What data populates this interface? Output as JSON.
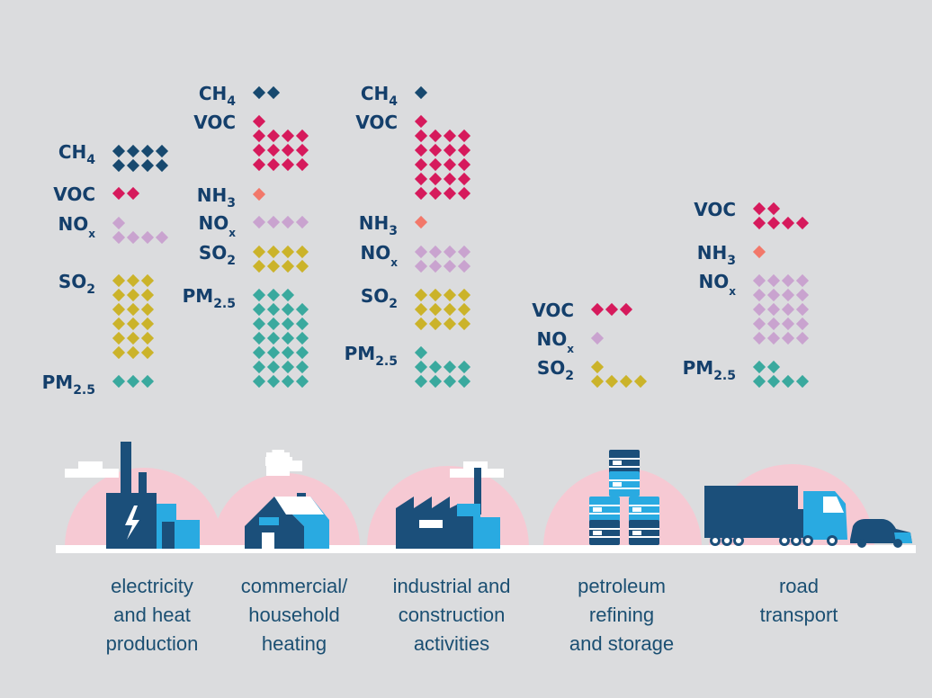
{
  "colors": {
    "background": "#dbdcde",
    "CH4": "#17496f",
    "VOC": "#d61a5c",
    "NH3": "#f2786a",
    "NOx": "#c9a3cf",
    "SO2": "#cbb32a",
    "PM": "#3aa99e",
    "label": "#143f6b",
    "caption": "#1b4f72",
    "arch": "#f6c9d3",
    "building_dark": "#1b4f7a",
    "building_light": "#29aae1"
  },
  "pollutants": {
    "CH4": {
      "main": "CH",
      "sub": "4"
    },
    "VOC": {
      "main": "VOC",
      "sub": ""
    },
    "NH3": {
      "main": "NH",
      "sub": "3"
    },
    "NOx": {
      "main": "NO",
      "sub": "x"
    },
    "SO2": {
      "main": "SO",
      "sub": "2"
    },
    "PM": {
      "main": "PM",
      "sub": "2.5"
    }
  },
  "sectors": [
    {
      "caption": [
        "electricity",
        "and heat",
        "production"
      ],
      "icon": "power-plant-icon",
      "emissions": [
        {
          "pollutant": "CH4",
          "dots": 8
        },
        {
          "pollutant": "VOC",
          "dots": 2
        },
        {
          "pollutant": "NOx",
          "dots": 5
        },
        {
          "pollutant": "SO2",
          "dots": 18
        },
        {
          "pollutant": "PM",
          "dots": 3
        }
      ]
    },
    {
      "caption": [
        "commercial/",
        "household",
        "heating"
      ],
      "icon": "house-icon",
      "emissions": [
        {
          "pollutant": "CH4",
          "dots": 2
        },
        {
          "pollutant": "VOC",
          "dots": 13
        },
        {
          "pollutant": "NH3",
          "dots": 1
        },
        {
          "pollutant": "NOx",
          "dots": 4
        },
        {
          "pollutant": "SO2",
          "dots": 8
        },
        {
          "pollutant": "PM",
          "dots": 27
        }
      ]
    },
    {
      "caption": [
        "industrial and",
        "construction",
        "activities"
      ],
      "icon": "factory-icon",
      "emissions": [
        {
          "pollutant": "CH4",
          "dots": 1
        },
        {
          "pollutant": "VOC",
          "dots": 21
        },
        {
          "pollutant": "NH3",
          "dots": 1
        },
        {
          "pollutant": "NOx",
          "dots": 8
        },
        {
          "pollutant": "SO2",
          "dots": 12
        },
        {
          "pollutant": "PM",
          "dots": 9
        }
      ]
    },
    {
      "caption": [
        "petroleum",
        "refining",
        "and storage"
      ],
      "icon": "oil-barrels-icon",
      "emissions": [
        {
          "pollutant": "VOC",
          "dots": 3
        },
        {
          "pollutant": "NOx",
          "dots": 1
        },
        {
          "pollutant": "SO2",
          "dots": 5
        }
      ]
    },
    {
      "caption": [
        "road",
        "transport"
      ],
      "icon": "truck-and-car-icon",
      "emissions": [
        {
          "pollutant": "VOC",
          "dots": 6
        },
        {
          "pollutant": "NH3",
          "dots": 1
        },
        {
          "pollutant": "NOx",
          "dots": 20
        },
        {
          "pollutant": "PM",
          "dots": 6
        }
      ]
    }
  ]
}
